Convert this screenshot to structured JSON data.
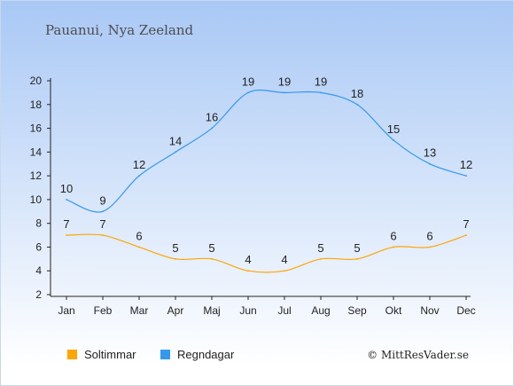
{
  "title": "Pauanui, Nya Zeeland",
  "credit": "© MittResVader.se",
  "colors": {
    "background_top": "#a9c8f5",
    "background_bottom": "#ffffff",
    "sun": "#ffa500",
    "rain": "#3399ee"
  },
  "chart_data": {
    "type": "line",
    "categories": [
      "Jan",
      "Feb",
      "Mar",
      "Apr",
      "Maj",
      "Jun",
      "Jul",
      "Aug",
      "Sep",
      "Okt",
      "Nov",
      "Dec"
    ],
    "series": [
      {
        "name": "Soltimmar",
        "color": "#ffa500",
        "values": [
          7,
          7,
          6,
          5,
          5,
          4,
          4,
          5,
          5,
          6,
          6,
          7
        ]
      },
      {
        "name": "Regndagar",
        "color": "#3399ee",
        "values": [
          10,
          9,
          12,
          14,
          16,
          19,
          19,
          19,
          18,
          15,
          13,
          12
        ]
      }
    ],
    "ylim": [
      2,
      20
    ],
    "yticks": [
      2,
      4,
      6,
      8,
      10,
      12,
      14,
      16,
      18,
      20
    ],
    "grid": false,
    "legend_position": "bottom-left",
    "xlabel": "",
    "ylabel": ""
  }
}
